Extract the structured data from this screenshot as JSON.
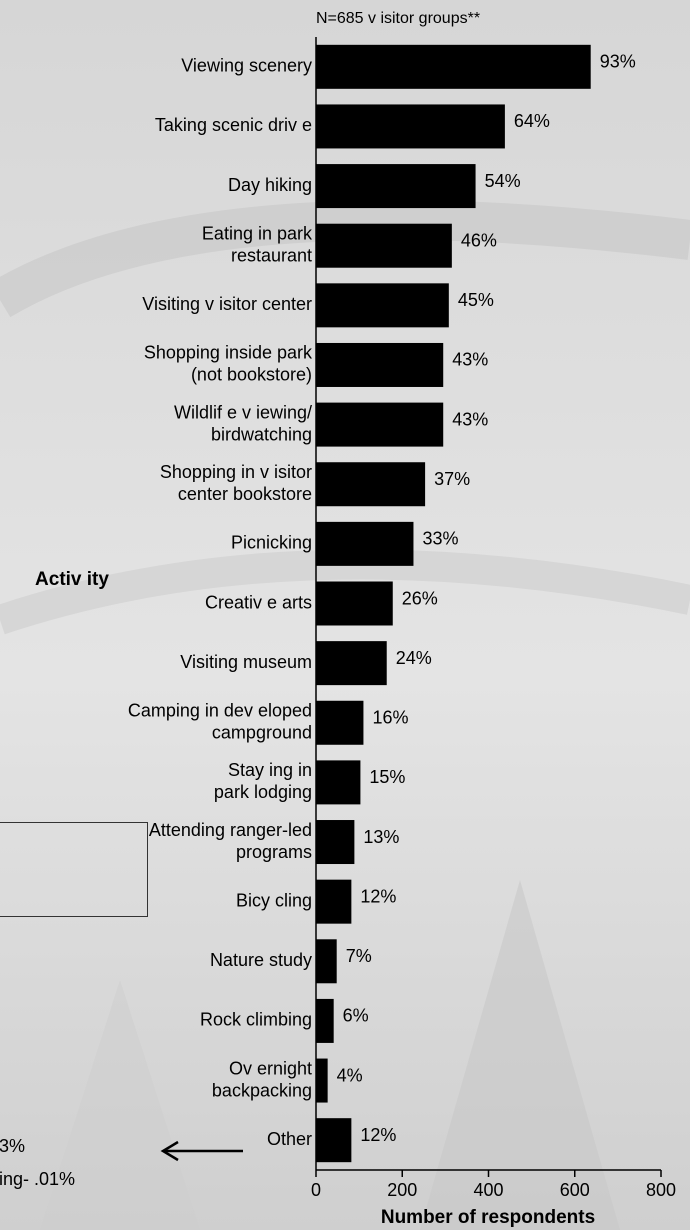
{
  "chart_data": {
    "type": "bar",
    "orientation": "horizontal",
    "title": "N=685 v isitor groups**",
    "xlabel": "Number of respondents",
    "ylabel": "Activ ity",
    "xlim": [
      0,
      800
    ],
    "xticks": [
      "0",
      "200",
      "400",
      "600",
      "800"
    ],
    "categories": [
      [
        "Viewing scenery"
      ],
      [
        "Taking scenic driv e"
      ],
      [
        "Day hiking"
      ],
      [
        "Eating in park",
        "restaurant"
      ],
      [
        "Visiting v isitor center"
      ],
      [
        "Shopping inside park",
        "(not bookstore)"
      ],
      [
        "Wildlif e v iewing/",
        "birdwatching"
      ],
      [
        "Shopping in v isitor",
        "center bookstore"
      ],
      [
        "Picnicking"
      ],
      [
        "Creativ e arts"
      ],
      [
        "Visiting museum"
      ],
      [
        "Camping in dev eloped",
        "campground"
      ],
      [
        "Stay ing in",
        "park lodging"
      ],
      [
        "Attending ranger-led",
        "programs"
      ],
      [
        "Bicy cling"
      ],
      [
        "Nature study"
      ],
      [
        "Rock climbing"
      ],
      [
        "Ov ernight",
        "backpacking"
      ],
      [
        "Other"
      ]
    ],
    "values": [
      637,
      438,
      370,
      315,
      308,
      295,
      295,
      253,
      226,
      178,
      164,
      110,
      103,
      89,
      82,
      48,
      41,
      27,
      82
    ],
    "labels": [
      "93%",
      "64%",
      "54%",
      "46%",
      "45%",
      "43%",
      "43%",
      "37%",
      "33%",
      "26%",
      "24%",
      "16%",
      "15%",
      "13%",
      "12%",
      "7%",
      "6%",
      "4%",
      "12%"
    ],
    "bar_color": "#000000",
    "grid": false
  },
  "callout": {
    "lines": [
      "3%",
      "ing-  .01%"
    ]
  }
}
